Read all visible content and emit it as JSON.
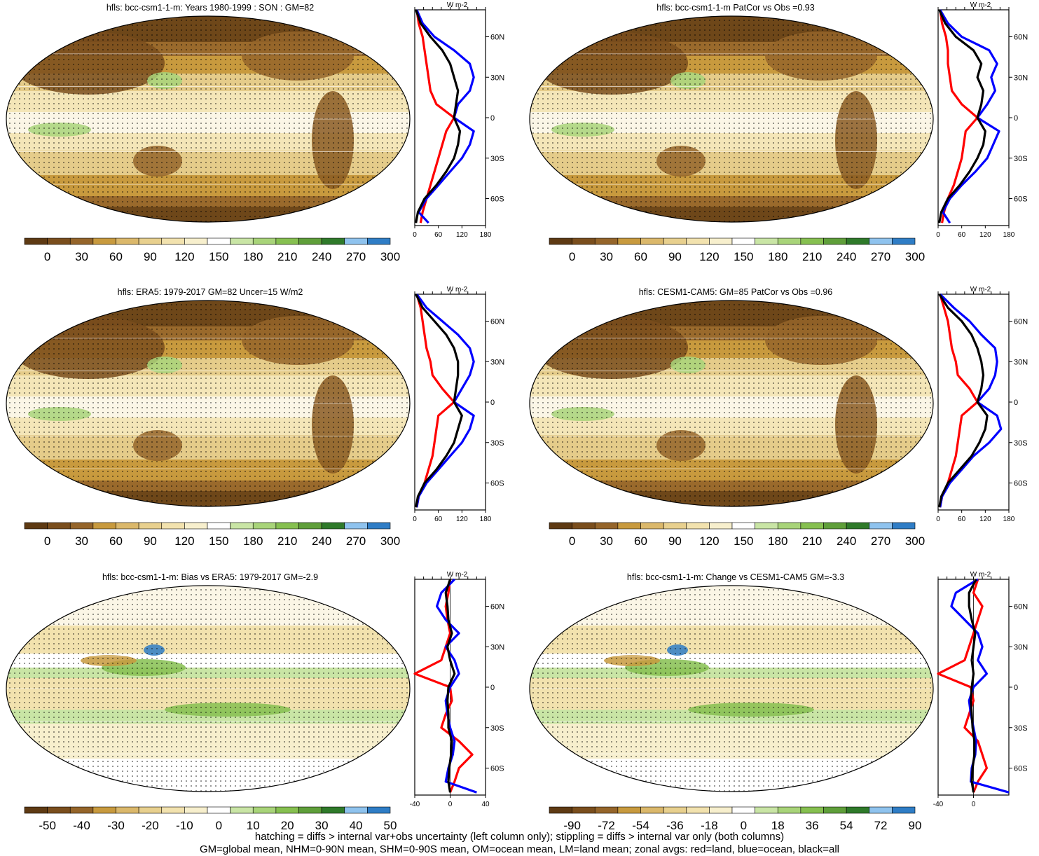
{
  "colors": {
    "palette_clim": [
      "#5e3a13",
      "#7a4e1d",
      "#95652a",
      "#c89a3e",
      "#dbb86b",
      "#e8d08e",
      "#f2e2ae",
      "#f7efcd",
      "#ffffff",
      "#c9e5a5",
      "#a8d479",
      "#86c050",
      "#5f9f3a",
      "#2f7a2a",
      "#8fc3ee",
      "#2f7dc6"
    ],
    "palette_diff": [
      "#5e3a13",
      "#7a4e1d",
      "#95652a",
      "#c89a3e",
      "#dbb86b",
      "#e8d08e",
      "#f2e2ae",
      "#f7efcd",
      "#ffffff",
      "#c9e5a5",
      "#a8d479",
      "#86c050",
      "#5f9f3a",
      "#2f7a2a",
      "#8fc3ee",
      "#2f7dc6"
    ],
    "land_line": "#ff0000",
    "ocean_line": "#0000ff",
    "all_line": "#000000"
  },
  "chart_data": [
    {
      "type": "heatmap",
      "title": "hfls: bcc-csm1-1-m: Years 1980-1999 : SON : GM=82",
      "colorbar_ticks": [
        "0",
        "30",
        "60",
        "90",
        "120",
        "150",
        "180",
        "210",
        "240",
        "270",
        "300"
      ],
      "zonal": {
        "type": "line",
        "unit": "W m-2",
        "xlim": [
          0,
          180
        ],
        "xticks": [
          "0",
          "60",
          "120",
          "180"
        ],
        "yticks": [
          "60N",
          "30N",
          "0",
          "30S",
          "60S"
        ],
        "series": [
          {
            "color": "land",
            "lat": [
              80,
              70,
              60,
              50,
              40,
              30,
              20,
              10,
              0,
              -10,
              -20,
              -30,
              -40,
              -50,
              -60,
              -70,
              -78
            ],
            "values": [
              5,
              10,
              20,
              25,
              30,
              35,
              40,
              55,
              100,
              80,
              70,
              60,
              50,
              40,
              30,
              20,
              15
            ]
          },
          {
            "color": "ocean",
            "lat": [
              80,
              70,
              60,
              50,
              40,
              30,
              20,
              10,
              0,
              -10,
              -20,
              -30,
              -40,
              -50,
              -60,
              -70,
              -78
            ],
            "values": [
              5,
              20,
              50,
              100,
              140,
              150,
              140,
              110,
              100,
              150,
              140,
              120,
              90,
              60,
              30,
              10,
              35
            ]
          },
          {
            "color": "all",
            "lat": [
              80,
              70,
              60,
              50,
              40,
              30,
              20,
              10,
              0,
              -10,
              -20,
              -30,
              -40,
              -50,
              -60,
              -70,
              -78
            ],
            "values": [
              3,
              15,
              40,
              70,
              90,
              100,
              110,
              105,
              100,
              115,
              110,
              100,
              80,
              55,
              25,
              8,
              3
            ]
          }
        ]
      }
    },
    {
      "type": "heatmap",
      "title": "hfls: bcc-csm1-1-m PatCor vs Obs =0.93",
      "colorbar_ticks": [
        "0",
        "30",
        "60",
        "90",
        "120",
        "150",
        "180",
        "210",
        "240",
        "270",
        "300"
      ],
      "zonal": {
        "type": "line",
        "unit": "W m-2",
        "xlim": [
          0,
          180
        ],
        "xticks": [
          "0",
          "60",
          "120",
          "180"
        ],
        "yticks": [
          "60N",
          "30N",
          "0",
          "30S",
          "60S"
        ],
        "series": [
          {
            "color": "land",
            "lat": [
              80,
              70,
              60,
              50,
              40,
              30,
              20,
              10,
              0,
              -10,
              -20,
              -30,
              -40,
              -50,
              -60,
              -70,
              -78
            ],
            "values": [
              5,
              10,
              20,
              25,
              25,
              30,
              35,
              60,
              100,
              70,
              65,
              60,
              50,
              40,
              25,
              15,
              10
            ]
          },
          {
            "color": "ocean",
            "lat": [
              80,
              70,
              60,
              50,
              40,
              30,
              20,
              10,
              0,
              -10,
              -20,
              -30,
              -40,
              -50,
              -60,
              -70,
              -78
            ],
            "values": [
              5,
              25,
              60,
              130,
              150,
              135,
              145,
              125,
              100,
              155,
              140,
              125,
              95,
              60,
              30,
              12,
              30
            ]
          },
          {
            "color": "all",
            "lat": [
              80,
              70,
              60,
              50,
              40,
              30,
              20,
              10,
              0,
              -10,
              -20,
              -30,
              -40,
              -50,
              -60,
              -70,
              -78
            ],
            "values": [
              3,
              18,
              45,
              90,
              110,
              100,
              115,
              110,
              100,
              120,
              115,
              100,
              80,
              55,
              25,
              8,
              3
            ]
          }
        ]
      }
    },
    {
      "type": "heatmap",
      "title": "hfls: ERA5: 1979-2017 GM=82 Uncer=15 W/m2",
      "colorbar_ticks": [
        "0",
        "30",
        "60",
        "90",
        "120",
        "150",
        "180",
        "210",
        "240",
        "270",
        "300"
      ],
      "zonal": {
        "type": "line",
        "unit": "W m-2",
        "xlim": [
          0,
          180
        ],
        "xticks": [
          "0",
          "60",
          "120",
          "180"
        ],
        "yticks": [
          "60N",
          "30N",
          "0",
          "30S",
          "60S"
        ],
        "series": [
          {
            "color": "land",
            "lat": [
              80,
              70,
              60,
              50,
              40,
              30,
              20,
              10,
              0,
              -10,
              -20,
              -30,
              -40,
              -50,
              -60,
              -70,
              -78
            ],
            "values": [
              5,
              15,
              20,
              25,
              30,
              40,
              45,
              70,
              100,
              60,
              55,
              50,
              45,
              35,
              25,
              10,
              5
            ]
          },
          {
            "color": "ocean",
            "lat": [
              80,
              70,
              60,
              50,
              40,
              30,
              20,
              10,
              0,
              -10,
              -20,
              -30,
              -40,
              -50,
              -60,
              -70,
              -78
            ],
            "values": [
              5,
              30,
              70,
              110,
              140,
              150,
              140,
              120,
              100,
              150,
              140,
              120,
              90,
              60,
              30,
              10,
              5
            ]
          },
          {
            "color": "all",
            "lat": [
              80,
              70,
              60,
              50,
              40,
              30,
              20,
              10,
              0,
              -10,
              -20,
              -30,
              -40,
              -50,
              -60,
              -70,
              -78
            ],
            "values": [
              3,
              20,
              50,
              80,
              100,
              110,
              110,
              105,
              100,
              120,
              110,
              100,
              80,
              55,
              25,
              8,
              3
            ]
          }
        ]
      }
    },
    {
      "type": "heatmap",
      "title": "hfls: CESM1-CAM5: GM=85 PatCor vs Obs =0.96",
      "colorbar_ticks": [
        "0",
        "30",
        "60",
        "90",
        "120",
        "150",
        "180",
        "210",
        "240",
        "270",
        "300"
      ],
      "zonal": {
        "type": "line",
        "unit": "W m-2",
        "xlim": [
          0,
          180
        ],
        "xticks": [
          "0",
          "60",
          "120",
          "180"
        ],
        "yticks": [
          "60N",
          "30N",
          "0",
          "30S",
          "60S"
        ],
        "series": [
          {
            "color": "land",
            "lat": [
              80,
              70,
              60,
              50,
              40,
              30,
              20,
              10,
              0,
              -10,
              -20,
              -30,
              -40,
              -50,
              -60,
              -70,
              -78
            ],
            "values": [
              5,
              15,
              25,
              30,
              35,
              45,
              50,
              80,
              100,
              60,
              55,
              50,
              45,
              35,
              25,
              10,
              5
            ]
          },
          {
            "color": "ocean",
            "lat": [
              80,
              70,
              60,
              50,
              40,
              30,
              20,
              10,
              0,
              -10,
              -20,
              -30,
              -40,
              -50,
              -60,
              -70,
              -78
            ],
            "values": [
              5,
              40,
              80,
              110,
              145,
              150,
              145,
              130,
              100,
              150,
              160,
              130,
              90,
              60,
              30,
              10,
              5
            ]
          },
          {
            "color": "all",
            "lat": [
              80,
              70,
              60,
              50,
              40,
              30,
              20,
              10,
              0,
              -10,
              -20,
              -30,
              -40,
              -50,
              -60,
              -70,
              -78
            ],
            "values": [
              3,
              25,
              60,
              85,
              100,
              110,
              115,
              110,
              100,
              125,
              120,
              105,
              85,
              55,
              25,
              8,
              3
            ]
          }
        ]
      }
    },
    {
      "type": "heatmap",
      "title": "hfls: bcc-csm1-1-m: Bias vs ERA5: 1979-2017  GM=-2.9",
      "colorbar_ticks": [
        "-50",
        "-40",
        "-30",
        "-20",
        "-10",
        "0",
        "10",
        "20",
        "30",
        "40",
        "50"
      ],
      "zonal": {
        "type": "line",
        "unit": "W m-2",
        "xlim": [
          -40,
          40
        ],
        "xticks": [
          "-40",
          "0",
          "40"
        ],
        "yticks": [
          "60N",
          "30N",
          "0",
          "30S",
          "60S"
        ],
        "series": [
          {
            "color": "land",
            "lat": [
              80,
              70,
              60,
              50,
              40,
              30,
              20,
              10,
              0,
              -10,
              -20,
              -30,
              -40,
              -50,
              -60,
              -70,
              -78
            ],
            "values": [
              0,
              -2,
              -5,
              -3,
              0,
              -5,
              -10,
              -40,
              0,
              2,
              -5,
              -10,
              10,
              25,
              10,
              5,
              0
            ]
          },
          {
            "color": "ocean",
            "lat": [
              80,
              70,
              60,
              50,
              40,
              30,
              20,
              10,
              0,
              -10,
              -20,
              -30,
              -40,
              -50,
              -60,
              -70,
              -78
            ],
            "values": [
              5,
              -10,
              -15,
              -5,
              10,
              -5,
              5,
              10,
              0,
              -5,
              -3,
              0,
              5,
              3,
              -2,
              -5,
              30
            ]
          },
          {
            "color": "all",
            "lat": [
              80,
              70,
              60,
              50,
              40,
              30,
              20,
              10,
              0,
              -10,
              -20,
              -30,
              -40,
              -50,
              -60,
              -70,
              -78
            ],
            "values": [
              0,
              -5,
              -3,
              -2,
              2,
              -3,
              0,
              5,
              -2,
              -3,
              -2,
              -2,
              2,
              1,
              -1,
              -2,
              0
            ]
          }
        ]
      }
    },
    {
      "type": "heatmap",
      "title": "hfls: bcc-csm1-1-m: Change vs CESM1-CAM5 GM=-3.3",
      "colorbar_ticks": [
        "-90",
        "-72",
        "-54",
        "-36",
        "-18",
        "0",
        "18",
        "36",
        "54",
        "72",
        "90"
      ],
      "zonal": {
        "type": "line",
        "unit": "W m-2",
        "xlim": [
          -40,
          40
        ],
        "xticks": [
          "-40",
          "0"
        ],
        "yticks": [
          "60N",
          "30N",
          "0",
          "30S",
          "60S"
        ],
        "series": [
          {
            "color": "land",
            "lat": [
              80,
              70,
              60,
              50,
              40,
              30,
              20,
              10,
              0,
              -10,
              -20,
              -30,
              -40,
              -50,
              -60,
              -70,
              -78
            ],
            "values": [
              5,
              0,
              10,
              5,
              0,
              -5,
              -10,
              -40,
              -3,
              0,
              -5,
              -10,
              5,
              10,
              15,
              5,
              0
            ]
          },
          {
            "color": "ocean",
            "lat": [
              80,
              70,
              60,
              50,
              40,
              30,
              20,
              10,
              0,
              -10,
              -20,
              -30,
              -40,
              -50,
              -60,
              -70,
              -78
            ],
            "values": [
              5,
              -20,
              -25,
              -10,
              5,
              10,
              5,
              15,
              0,
              -5,
              -3,
              0,
              3,
              2,
              -2,
              -3,
              40
            ]
          },
          {
            "color": "all",
            "lat": [
              80,
              70,
              60,
              50,
              40,
              30,
              20,
              10,
              0,
              -10,
              -20,
              -30,
              -40,
              -50,
              -60,
              -70,
              -78
            ],
            "values": [
              3,
              -5,
              -5,
              -2,
              2,
              0,
              -2,
              0,
              -2,
              -3,
              -2,
              -1,
              1,
              1,
              -1,
              -2,
              0
            ]
          }
        ]
      }
    }
  ],
  "footer": {
    "line1": "hatching = diffs > internal var+obs uncertainty (left column only); stippling = diffs > internal var only (both columns)",
    "line2": "GM=global mean, NHM=0-90N mean, SHM=0-90S mean, OM=ocean mean, LM=land mean; zonal avgs: red=land, blue=ocean, black=all"
  }
}
